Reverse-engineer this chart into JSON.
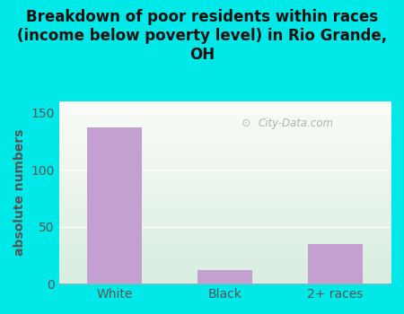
{
  "categories": [
    "White",
    "Black",
    "2+ races"
  ],
  "values": [
    137,
    12,
    35
  ],
  "bar_color": "#c4a0d0",
  "title": "Breakdown of poor residents within races\n(income below poverty level) in Rio Grande,\nOH",
  "ylabel": "absolute numbers",
  "ylim": [
    0,
    160
  ],
  "yticks": [
    0,
    50,
    100,
    150
  ],
  "background_outer": "#00e8e8",
  "background_plot_topleft": "#e8f5e0",
  "background_plot_topright": "#f8faf5",
  "background_plot_bottom": "#d8ede0",
  "watermark": "City-Data.com",
  "title_fontsize": 12,
  "ylabel_fontsize": 10,
  "tick_fontsize": 10,
  "bar_width": 0.5
}
